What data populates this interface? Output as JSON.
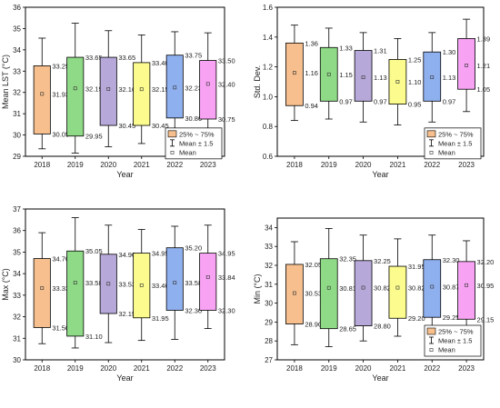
{
  "chart_data": [
    {
      "type": "box",
      "ylabel": "Mean LST (°C)",
      "xlabel": "Year",
      "ylim": [
        29,
        36
      ],
      "yticks": [
        29,
        30,
        31,
        32,
        33,
        34,
        35,
        36
      ],
      "categories": [
        "2018",
        "2019",
        "2020",
        "2021",
        "2022",
        "2023"
      ],
      "colors": [
        "#f7bf8d",
        "#8fda87",
        "#b6a8d8",
        "#fbfb8e",
        "#8fb0ef",
        "#f8a2f3"
      ],
      "q1": [
        30.05,
        29.95,
        30.45,
        30.45,
        30.8,
        30.75
      ],
      "q3": [
        33.25,
        33.65,
        33.65,
        33.4,
        33.75,
        33.5
      ],
      "mean": [
        31.93,
        32.19,
        32.16,
        32.15,
        32.23,
        32.4
      ],
      "whisker_low": [
        29.35,
        29.15,
        29.45,
        29.6,
        29.6,
        30.05
      ],
      "whisker_high": [
        34.55,
        35.25,
        34.9,
        34.7,
        34.85,
        34.8
      ],
      "q1_labels": [
        "30.05",
        "29.95",
        "30.45",
        "30.45",
        "30.80",
        "30.75"
      ],
      "q3_labels": [
        "33.25",
        "33.65",
        "33.65",
        "33.40",
        "33.75",
        "33.50"
      ],
      "mean_labels": [
        "31.93",
        "32.19",
        "32.16",
        "32.15",
        "32.23",
        "32.40"
      ],
      "legend": [
        "25% ~ 75%",
        "Mean ± 1.5",
        "Mean"
      ],
      "legend_position": "top-right"
    },
    {
      "type": "box",
      "ylabel": "Std. Dev.",
      "xlabel": "Year",
      "ylim": [
        0.6,
        1.6
      ],
      "yticks": [
        0.6,
        0.8,
        1.0,
        1.2,
        1.4,
        1.6
      ],
      "categories": [
        "2018",
        "2019",
        "2020",
        "2021",
        "2022",
        "2023"
      ],
      "colors": [
        "#f7bf8d",
        "#8fda87",
        "#b6a8d8",
        "#fbfb8e",
        "#8fb0ef",
        "#f8a2f3"
      ],
      "q1": [
        0.94,
        0.97,
        0.97,
        0.95,
        0.97,
        1.05
      ],
      "q3": [
        1.36,
        1.33,
        1.31,
        1.25,
        1.3,
        1.39
      ],
      "mean": [
        1.16,
        1.15,
        1.13,
        1.1,
        1.13,
        1.21
      ],
      "whisker_low": [
        0.84,
        0.85,
        0.83,
        0.81,
        0.83,
        0.9
      ],
      "whisker_high": [
        1.48,
        1.46,
        1.43,
        1.39,
        1.43,
        1.52
      ],
      "q1_labels": [
        "0.94",
        "0.97",
        "0.97",
        "0.95",
        "0.97",
        "1.05"
      ],
      "q3_labels": [
        "1.36",
        "1.33",
        "1.31",
        "1.25",
        "1.30",
        "1.39"
      ],
      "mean_labels": [
        "1.16",
        "1.15",
        "1.13",
        "1.10",
        "1.13",
        "1.21"
      ],
      "legend": [
        "25% ~ 75%",
        "Mean ± 1.5",
        "Mean"
      ],
      "legend_position": "top-right"
    },
    {
      "type": "box",
      "ylabel": "Max (°C)",
      "xlabel": "Year",
      "ylim": [
        30,
        37
      ],
      "yticks": [
        30,
        31,
        32,
        33,
        34,
        35,
        36,
        37
      ],
      "categories": [
        "2018",
        "2019",
        "2020",
        "2021",
        "2022",
        "2023"
      ],
      "colors": [
        "#f7bf8d",
        "#8fda87",
        "#b6a8d8",
        "#fbfb8e",
        "#8fb0ef",
        "#f8a2f3"
      ],
      "q1": [
        31.5,
        31.1,
        32.15,
        31.95,
        32.3,
        32.3
      ],
      "q3": [
        34.7,
        35.05,
        34.9,
        34.95,
        35.2,
        34.95
      ],
      "mean": [
        33.33,
        33.58,
        33.53,
        33.46,
        33.58,
        33.84
      ],
      "whisker_low": [
        30.75,
        30.55,
        30.8,
        30.9,
        30.95,
        31.45
      ],
      "whisker_high": [
        35.9,
        36.6,
        36.25,
        36.05,
        36.2,
        36.25
      ],
      "q1_labels": [
        "31.50",
        "31.10",
        "32.15",
        "31.95",
        "32.30",
        "32.30"
      ],
      "q3_labels": [
        "34.70",
        "35.05",
        "34.90",
        "34.95",
        "35.20",
        "34.95"
      ],
      "mean_labels": [
        "33.33",
        "33.58",
        "33.53",
        "33.46",
        "33.58",
        "33.84"
      ],
      "legend": [],
      "legend_position": ""
    },
    {
      "type": "box",
      "ylabel": "Min (°C)",
      "xlabel": "Year",
      "ylim": [
        27,
        34.5
      ],
      "yticks": [
        27,
        28,
        29,
        30,
        31,
        32,
        33,
        34
      ],
      "categories": [
        "2018",
        "2019",
        "2020",
        "2021",
        "2022",
        "2023"
      ],
      "colors": [
        "#f7bf8d",
        "#8fda87",
        "#b6a8d8",
        "#fbfb8e",
        "#8fb0ef",
        "#f8a2f3"
      ],
      "q1": [
        28.9,
        28.65,
        28.8,
        29.2,
        29.25,
        29.15
      ],
      "q3": [
        32.05,
        32.35,
        32.25,
        31.95,
        32.3,
        32.2
      ],
      "mean": [
        30.53,
        30.81,
        30.82,
        30.82,
        30.87,
        30.95
      ],
      "whisker_low": [
        27.8,
        27.7,
        28.0,
        28.25,
        28.15,
        28.55
      ],
      "whisker_high": [
        33.25,
        33.95,
        33.6,
        33.4,
        33.6,
        33.3
      ],
      "q1_labels": [
        "28.90",
        "28.65",
        "28.80",
        "29.20",
        "29.25",
        "29.15"
      ],
      "q3_labels": [
        "32.05",
        "32.35",
        "32.25",
        "31.95",
        "32.30",
        "32.20"
      ],
      "mean_labels": [
        "30.53",
        "30.81",
        "30.82",
        "30.82",
        "30.87",
        "30.95"
      ],
      "legend": [
        "25% ~ 75%",
        "Mean ± 1.5",
        "Mean"
      ],
      "legend_position": "bottom-right"
    }
  ]
}
